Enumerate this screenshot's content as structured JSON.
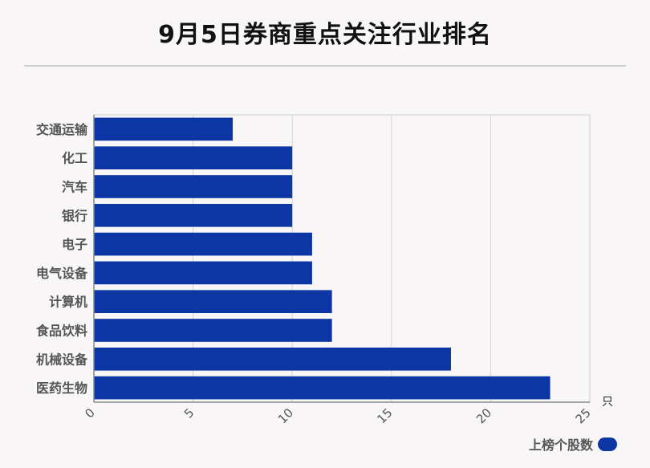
{
  "title": "9月5日券商重点关注行业排名",
  "chart_data": {
    "type": "bar",
    "orientation": "horizontal",
    "categories": [
      "交通运输",
      "化工",
      "汽车",
      "银行",
      "电子",
      "电气设备",
      "计算机",
      "食品饮料",
      "机械设备",
      "医药生物"
    ],
    "series": [
      {
        "name": "上榜个股数",
        "values": [
          7,
          10,
          10,
          10,
          11,
          11,
          12,
          12,
          18,
          23
        ]
      }
    ],
    "x_ticks": [
      "0",
      "5",
      "10",
      "15",
      "20",
      "25"
    ],
    "xlim": [
      0,
      25
    ],
    "xunit": "只",
    "grid": true,
    "legend_position": "bottom-right",
    "bar_color": "#0b36a3"
  }
}
